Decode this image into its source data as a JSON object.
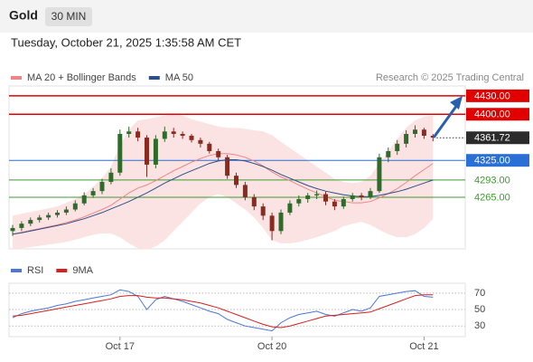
{
  "header": {
    "symbol": "Gold",
    "interval": "30 MIN",
    "timestamp": "Tuesday, October 21, 2025 1:35:58 AM CET",
    "credit": "Research © 2025 Trading Central"
  },
  "chart_data": [
    {
      "type": "candlestick",
      "categories": [
        null,
        null,
        null,
        null,
        null,
        null,
        null,
        null,
        null,
        null,
        null,
        null,
        "Oct 17",
        null,
        null,
        null,
        null,
        null,
        null,
        null,
        null,
        null,
        null,
        null,
        null,
        null,
        null,
        null,
        null,
        "Oct 20",
        null,
        null,
        null,
        null,
        null,
        null,
        null,
        null,
        null,
        null,
        null,
        null,
        null,
        null,
        null,
        null,
        "Oct 21",
        null
      ],
      "open": [
        4210,
        4215,
        4222,
        4228,
        4232,
        4236,
        4240,
        4245,
        4255,
        4268,
        4275,
        4290,
        4305,
        4368,
        4372,
        4362,
        4318,
        4360,
        4372,
        4368,
        4365,
        4358,
        4352,
        4340,
        4330,
        4300,
        4285,
        4265,
        4250,
        4235,
        4210,
        4240,
        4255,
        4262,
        4268,
        4270,
        4258,
        4250,
        4262,
        4268,
        4265,
        4275,
        4330,
        4340,
        4352,
        4368,
        4375,
        4365
      ],
      "high": [
        4220,
        4226,
        4232,
        4236,
        4240,
        4244,
        4250,
        4260,
        4273,
        4280,
        4295,
        4312,
        4375,
        4380,
        4378,
        4366,
        4366,
        4380,
        4378,
        4372,
        4368,
        4362,
        4355,
        4344,
        4334,
        4305,
        4290,
        4270,
        4255,
        4240,
        4245,
        4260,
        4268,
        4272,
        4276,
        4274,
        4262,
        4266,
        4272,
        4272,
        4280,
        4336,
        4346,
        4358,
        4374,
        4382,
        4378,
        4368
      ],
      "low": [
        4202,
        4210,
        4218,
        4224,
        4228,
        4232,
        4236,
        4242,
        4252,
        4264,
        4270,
        4286,
        4300,
        4362,
        4356,
        4298,
        4312,
        4355,
        4362,
        4360,
        4354,
        4346,
        4336,
        4325,
        4295,
        4280,
        4260,
        4244,
        4228,
        4195,
        4205,
        4236,
        4250,
        4256,
        4262,
        4252,
        4244,
        4246,
        4258,
        4260,
        4262,
        4272,
        4322,
        4334,
        4346,
        4362,
        4360,
        4356
      ],
      "close": [
        4215,
        4222,
        4228,
        4232,
        4236,
        4240,
        4245,
        4255,
        4268,
        4275,
        4290,
        4305,
        4368,
        4372,
        4362,
        4318,
        4360,
        4372,
        4368,
        4365,
        4358,
        4352,
        4340,
        4330,
        4300,
        4285,
        4265,
        4250,
        4235,
        4210,
        4240,
        4255,
        4262,
        4268,
        4270,
        4258,
        4250,
        4262,
        4268,
        4265,
        4275,
        4330,
        4340,
        4352,
        4368,
        4375,
        4365,
        4362
      ],
      "up_color": "#2f6b2a",
      "down_color": "#8b2a1e",
      "series": [
        {
          "name": "MA 20 + Bollinger Bands",
          "color": "#f08585",
          "band_color": "#fbe3e3",
          "values": [
            4205,
            4208,
            4211,
            4214,
            4217,
            4220,
            4224,
            4228,
            4233,
            4239,
            4245,
            4252,
            4262,
            4272,
            4280,
            4285,
            4292,
            4300,
            4308,
            4315,
            4322,
            4328,
            4333,
            4336,
            4336,
            4334,
            4330,
            4324,
            4316,
            4306,
            4298,
            4292,
            4285,
            4278,
            4272,
            4266,
            4260,
            4258,
            4256,
            4256,
            4258,
            4264,
            4271,
            4279,
            4289,
            4300,
            4310,
            4320
          ],
          "upper": [
            4235,
            4238,
            4241,
            4244,
            4247,
            4250,
            4256,
            4262,
            4270,
            4282,
            4296,
            4315,
            4350,
            4375,
            4390,
            4392,
            4395,
            4398,
            4400,
            4398,
            4392,
            4388,
            4384,
            4380,
            4378,
            4378,
            4376,
            4374,
            4372,
            4366,
            4355,
            4345,
            4335,
            4325,
            4315,
            4305,
            4295,
            4290,
            4288,
            4290,
            4300,
            4320,
            4340,
            4360,
            4378,
            4390,
            4396,
            4398
          ],
          "lower": [
            4180,
            4182,
            4184,
            4186,
            4188,
            4190,
            4192,
            4196,
            4200,
            4204,
            4206,
            4206,
            4200,
            4190,
            4182,
            4180,
            4185,
            4195,
            4210,
            4225,
            4240,
            4255,
            4265,
            4270,
            4265,
            4255,
            4245,
            4232,
            4215,
            4195,
            4190,
            4190,
            4192,
            4196,
            4200,
            4205,
            4210,
            4218,
            4222,
            4225,
            4220,
            4212,
            4205,
            4200,
            4200,
            4205,
            4215,
            4230
          ]
        },
        {
          "name": "MA 50",
          "color": "#2d4f8a",
          "values": [
            4205,
            4207,
            4210,
            4213,
            4216,
            4219,
            4222,
            4226,
            4230,
            4235,
            4240,
            4246,
            4252,
            4258,
            4265,
            4272,
            4280,
            4288,
            4295,
            4302,
            4308,
            4314,
            4320,
            4324,
            4326,
            4326,
            4324,
            4320,
            4315,
            4309,
            4302,
            4296,
            4290,
            4284,
            4279,
            4275,
            4272,
            4269,
            4267,
            4266,
            4266,
            4268,
            4271,
            4274,
            4278,
            4283,
            4288,
            4293
          ]
        }
      ],
      "levels": [
        {
          "value": 4430,
          "label": "4430.00",
          "color": "#e00000",
          "boxed": true,
          "dotted": false
        },
        {
          "value": 4400,
          "label": "4400.00",
          "color": "#e00000",
          "boxed": true,
          "dotted": false
        },
        {
          "value": 4361.72,
          "label": "4361.72",
          "color": "#2b2b2b",
          "boxed": true,
          "dotted": true
        },
        {
          "value": 4325,
          "label": "4325.00",
          "color": "#2a6fd6",
          "boxed": true,
          "dotted": false
        },
        {
          "value": 4293,
          "label": "4293.00",
          "color": "#3f9a2f",
          "boxed": false,
          "dotted": false
        },
        {
          "value": 4265,
          "label": "4265.00",
          "color": "#3f9a2f",
          "boxed": false,
          "dotted": false
        }
      ],
      "ylim": [
        4181,
        4446
      ]
    },
    {
      "type": "line",
      "series": [
        {
          "name": "RSI",
          "color": "#4a78d4",
          "values": [
            40,
            45,
            48,
            50,
            52,
            55,
            57,
            60,
            62,
            64,
            66,
            68,
            74,
            72,
            66,
            50,
            62,
            66,
            63,
            60,
            56,
            52,
            48,
            45,
            38,
            34,
            30,
            28,
            26,
            24,
            34,
            40,
            44,
            46,
            48,
            44,
            42,
            46,
            50,
            48,
            52,
            66,
            68,
            70,
            72,
            73,
            66,
            65
          ]
        },
        {
          "name": "9MA",
          "color": "#d42020",
          "values": [
            42,
            43,
            45,
            47,
            49,
            51,
            53,
            55,
            57,
            59,
            61,
            63,
            66,
            67,
            67,
            65,
            64,
            64,
            63,
            62,
            60,
            58,
            55,
            52,
            48,
            44,
            40,
            36,
            32,
            29,
            28,
            30,
            33,
            36,
            39,
            42,
            43,
            44,
            45,
            46,
            47,
            51,
            55,
            59,
            63,
            67,
            68,
            68
          ]
        }
      ],
      "ylim": [
        17,
        82
      ],
      "yticks": [
        30,
        50,
        70
      ]
    }
  ]
}
